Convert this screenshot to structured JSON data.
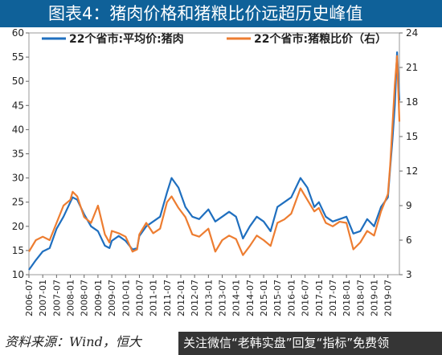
{
  "title": "图表4：猪肉价格和猪粮比价远超历史峰值",
  "source": "资料来源：Wind，恒大",
  "watermark": "关注微信“老韩实盘”回复“指标”免费领",
  "colors": {
    "title_bg": "#0f6199",
    "pork": "#1f6fbf",
    "ratio": "#ed7d31"
  },
  "chart_data": {
    "type": "line",
    "x_labels": [
      "2006-07",
      "2007-01",
      "2007-07",
      "2008-01",
      "2008-07",
      "2009-01",
      "2009-07",
      "2010-01",
      "2010-07",
      "2011-01",
      "2011-07",
      "2012-01",
      "2012-07",
      "2013-01",
      "2013-07",
      "2014-01",
      "2014-07",
      "2015-01",
      "2015-07",
      "2016-01",
      "2016-07",
      "2017-01",
      "2017-07",
      "2018-01",
      "2018-07",
      "2019-01",
      "2019-07"
    ],
    "x_range": [
      "2006-07",
      "2019-12"
    ],
    "y_left": {
      "ticks": [
        10,
        15,
        20,
        25,
        30,
        35,
        40,
        45,
        50,
        55,
        60
      ],
      "lim": [
        10,
        60
      ]
    },
    "y_right": {
      "ticks": [
        3,
        6,
        9,
        12,
        15,
        18,
        21,
        24
      ],
      "lim": [
        3,
        24
      ]
    },
    "legend": [
      "22个省市:平均价:猪肉",
      "22个省市:猪粮比价（右）"
    ],
    "legend_position": "top",
    "series": [
      {
        "name": "22个省市:平均价:猪肉",
        "axis": "left",
        "points": [
          [
            "2006-07",
            11.0
          ],
          [
            "2006-10",
            13.0
          ],
          [
            "2007-01",
            14.8
          ],
          [
            "2007-04",
            15.5
          ],
          [
            "2007-07",
            19.5
          ],
          [
            "2007-10",
            22.0
          ],
          [
            "2008-01",
            25.0
          ],
          [
            "2008-02",
            26.0
          ],
          [
            "2008-04",
            25.5
          ],
          [
            "2008-07",
            22.5
          ],
          [
            "2008-10",
            20.0
          ],
          [
            "2009-01",
            19.0
          ],
          [
            "2009-04",
            16.0
          ],
          [
            "2009-06",
            15.5
          ],
          [
            "2009-07",
            17.0
          ],
          [
            "2009-10",
            18.0
          ],
          [
            "2010-01",
            17.0
          ],
          [
            "2010-04",
            15.2
          ],
          [
            "2010-06",
            15.5
          ],
          [
            "2010-07",
            18.0
          ],
          [
            "2010-10",
            20.0
          ],
          [
            "2011-01",
            21.0
          ],
          [
            "2011-04",
            22.0
          ],
          [
            "2011-07",
            27.0
          ],
          [
            "2011-09",
            30.0
          ],
          [
            "2011-12",
            28.0
          ],
          [
            "2012-03",
            24.0
          ],
          [
            "2012-06",
            22.0
          ],
          [
            "2012-09",
            21.5
          ],
          [
            "2013-01",
            23.5
          ],
          [
            "2013-04",
            21.0
          ],
          [
            "2013-07",
            22.0
          ],
          [
            "2013-10",
            23.0
          ],
          [
            "2014-01",
            22.0
          ],
          [
            "2014-04",
            17.5
          ],
          [
            "2014-07",
            20.0
          ],
          [
            "2014-10",
            22.0
          ],
          [
            "2015-01",
            21.0
          ],
          [
            "2015-04",
            19.0
          ],
          [
            "2015-07",
            24.0
          ],
          [
            "2015-10",
            25.0
          ],
          [
            "2016-01",
            26.0
          ],
          [
            "2016-05",
            30.0
          ],
          [
            "2016-08",
            28.0
          ],
          [
            "2016-11",
            24.0
          ],
          [
            "2017-01",
            25.0
          ],
          [
            "2017-04",
            22.0
          ],
          [
            "2017-07",
            21.0
          ],
          [
            "2017-10",
            21.5
          ],
          [
            "2018-01",
            22.0
          ],
          [
            "2018-04",
            18.5
          ],
          [
            "2018-07",
            19.0
          ],
          [
            "2018-10",
            21.5
          ],
          [
            "2019-01",
            20.0
          ],
          [
            "2019-04",
            24.0
          ],
          [
            "2019-07",
            26.0
          ],
          [
            "2019-08",
            32.0
          ],
          [
            "2019-09",
            38.0
          ],
          [
            "2019-10",
            45.0
          ],
          [
            "2019-11",
            56.0
          ],
          [
            "2019-12",
            46.0
          ]
        ]
      },
      {
        "name": "22个省市:猪粮比价（右）",
        "axis": "right",
        "points": [
          [
            "2006-07",
            5.0
          ],
          [
            "2006-10",
            6.0
          ],
          [
            "2007-01",
            6.3
          ],
          [
            "2007-04",
            6.0
          ],
          [
            "2007-07",
            7.5
          ],
          [
            "2007-10",
            9.0
          ],
          [
            "2008-01",
            9.5
          ],
          [
            "2008-02",
            10.2
          ],
          [
            "2008-04",
            9.8
          ],
          [
            "2008-07",
            8.0
          ],
          [
            "2008-10",
            7.5
          ],
          [
            "2009-01",
            9.0
          ],
          [
            "2009-04",
            6.5
          ],
          [
            "2009-06",
            5.8
          ],
          [
            "2009-07",
            6.8
          ],
          [
            "2009-10",
            6.6
          ],
          [
            "2010-01",
            6.3
          ],
          [
            "2010-04",
            5.0
          ],
          [
            "2010-06",
            5.2
          ],
          [
            "2010-07",
            6.5
          ],
          [
            "2010-10",
            7.5
          ],
          [
            "2011-01",
            6.6
          ],
          [
            "2011-04",
            7.0
          ],
          [
            "2011-07",
            9.3
          ],
          [
            "2011-09",
            9.8
          ],
          [
            "2011-12",
            8.8
          ],
          [
            "2012-03",
            8.0
          ],
          [
            "2012-06",
            6.5
          ],
          [
            "2012-09",
            6.3
          ],
          [
            "2013-01",
            7.0
          ],
          [
            "2013-04",
            5.0
          ],
          [
            "2013-07",
            6.0
          ],
          [
            "2013-10",
            6.4
          ],
          [
            "2014-01",
            6.1
          ],
          [
            "2014-04",
            4.7
          ],
          [
            "2014-07",
            5.5
          ],
          [
            "2014-10",
            6.4
          ],
          [
            "2015-01",
            6.0
          ],
          [
            "2015-04",
            5.5
          ],
          [
            "2015-07",
            7.5
          ],
          [
            "2015-10",
            7.8
          ],
          [
            "2016-01",
            8.3
          ],
          [
            "2016-05",
            10.5
          ],
          [
            "2016-08",
            9.5
          ],
          [
            "2016-11",
            8.5
          ],
          [
            "2017-01",
            8.8
          ],
          [
            "2017-04",
            7.5
          ],
          [
            "2017-07",
            7.2
          ],
          [
            "2017-10",
            7.6
          ],
          [
            "2018-01",
            7.5
          ],
          [
            "2018-04",
            5.2
          ],
          [
            "2018-07",
            5.8
          ],
          [
            "2018-10",
            6.8
          ],
          [
            "2019-01",
            6.4
          ],
          [
            "2019-04",
            8.5
          ],
          [
            "2019-07",
            10.0
          ],
          [
            "2019-08",
            12.5
          ],
          [
            "2019-09",
            16.0
          ],
          [
            "2019-10",
            19.5
          ],
          [
            "2019-11",
            22.0
          ],
          [
            "2019-12",
            16.3
          ]
        ]
      }
    ]
  }
}
